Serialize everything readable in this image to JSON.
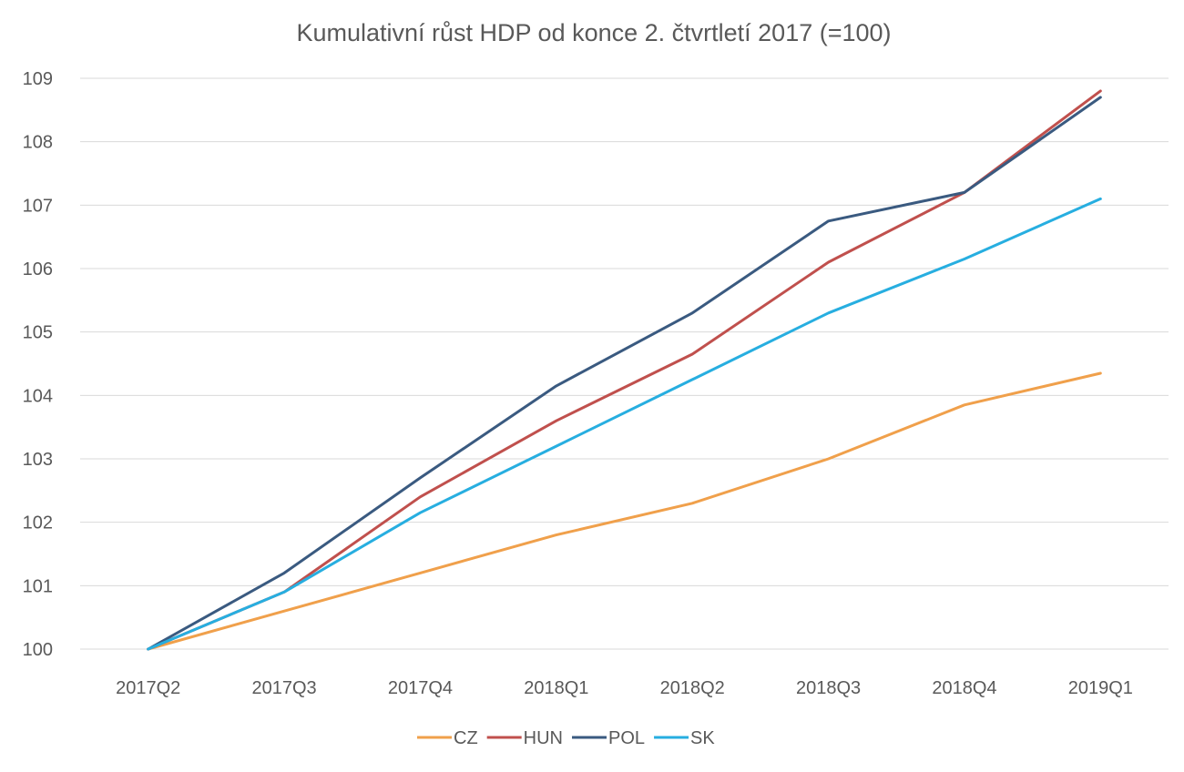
{
  "chart_data": {
    "type": "line",
    "title": "Kumulativní růst HDP od konce 2. čtvrtletí 2017 (=100)",
    "xlabel": "",
    "ylabel": "",
    "categories": [
      "2017Q2",
      "2017Q3",
      "2017Q4",
      "2018Q1",
      "2018Q2",
      "2018Q3",
      "2018Q4",
      "2019Q1"
    ],
    "ylim": [
      100,
      109
    ],
    "yticks": [
      "100",
      "101",
      "102",
      "103",
      "104",
      "105",
      "106",
      "107",
      "108",
      "109"
    ],
    "grid": true,
    "legend_position": "bottom",
    "series": [
      {
        "name": "CZ",
        "color": "#f0a04b",
        "values": [
          100,
          100.6,
          101.2,
          101.8,
          102.3,
          103.0,
          103.85,
          104.35
        ]
      },
      {
        "name": "HUN",
        "color": "#c0504d",
        "values": [
          100,
          100.9,
          102.4,
          103.6,
          104.65,
          106.1,
          107.2,
          108.8
        ]
      },
      {
        "name": "POL",
        "color": "#3a5a80",
        "values": [
          100,
          101.2,
          102.7,
          104.15,
          105.3,
          106.75,
          107.2,
          108.7
        ]
      },
      {
        "name": "SK",
        "color": "#27aee0",
        "values": [
          100,
          100.9,
          102.15,
          103.2,
          104.25,
          105.3,
          106.15,
          107.1
        ]
      }
    ]
  }
}
